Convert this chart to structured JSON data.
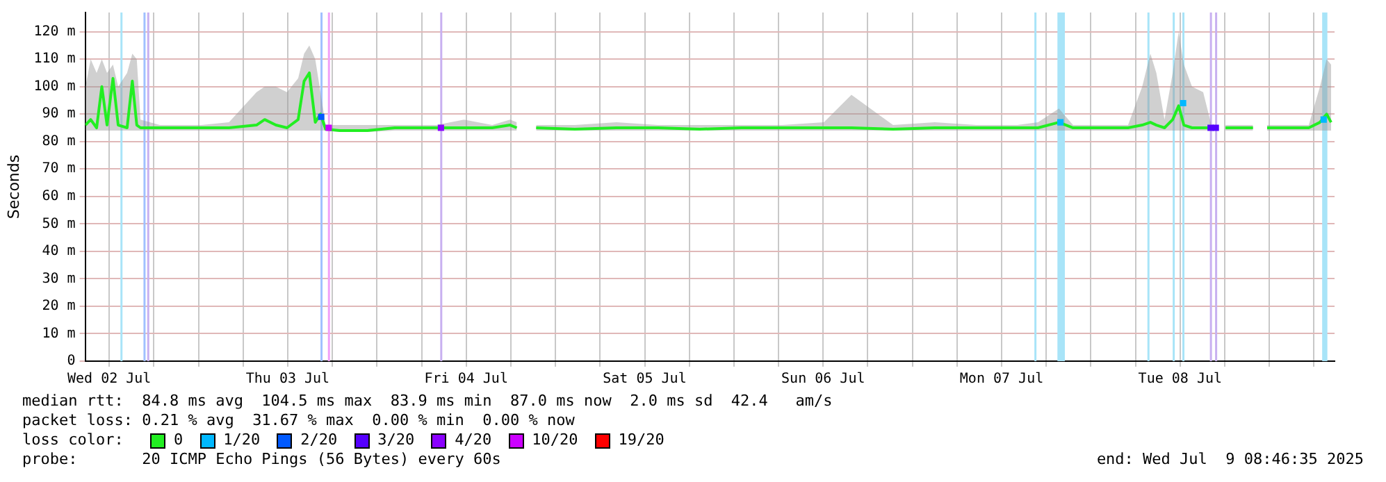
{
  "chart_data": {
    "type": "line",
    "ylabel": "Seconds",
    "legend_title": "loss color:",
    "legend": "bottom",
    "grid": true,
    "marker": "none",
    "xlim": [
      "2025-07-02T08:46",
      "2025-07-09T08:46"
    ],
    "xticks": [
      {
        "value": "2025-07-02T12:00",
        "label": "Wed 02 Jul"
      },
      {
        "value": "2025-07-02T18:00",
        "label": null
      },
      {
        "value": "2025-07-03T00:00",
        "label": null
      },
      {
        "value": "2025-07-03T06:00",
        "label": null
      },
      {
        "value": "2025-07-03T12:00",
        "label": "Thu 03 Jul"
      },
      {
        "value": "2025-07-03T18:00",
        "label": null
      },
      {
        "value": "2025-07-04T00:00",
        "label": null
      },
      {
        "value": "2025-07-04T06:00",
        "label": null
      },
      {
        "value": "2025-07-04T12:00",
        "label": "Fri 04 Jul"
      },
      {
        "value": "2025-07-04T18:00",
        "label": null
      },
      {
        "value": "2025-07-05T00:00",
        "label": null
      },
      {
        "value": "2025-07-05T06:00",
        "label": null
      },
      {
        "value": "2025-07-05T12:00",
        "label": "Sat 05 Jul"
      },
      {
        "value": "2025-07-05T18:00",
        "label": null
      },
      {
        "value": "2025-07-06T00:00",
        "label": null
      },
      {
        "value": "2025-07-06T06:00",
        "label": null
      },
      {
        "value": "2025-07-06T12:00",
        "label": "Sun 06 Jul"
      },
      {
        "value": "2025-07-06T18:00",
        "label": null
      },
      {
        "value": "2025-07-07T00:00",
        "label": null
      },
      {
        "value": "2025-07-07T06:00",
        "label": null
      },
      {
        "value": "2025-07-07T12:00",
        "label": "Mon 07 Jul"
      },
      {
        "value": "2025-07-07T18:00",
        "label": null
      },
      {
        "value": "2025-07-08T00:00",
        "label": null
      },
      {
        "value": "2025-07-08T06:00",
        "label": null
      },
      {
        "value": "2025-07-08T12:00",
        "label": "Tue 08 Jul"
      },
      {
        "value": "2025-07-08T18:00",
        "label": null
      },
      {
        "value": "2025-07-09T00:00",
        "label": null
      },
      {
        "value": "2025-07-09T06:00",
        "label": null
      }
    ],
    "ylim": [
      0,
      127
    ],
    "yticks": [
      0,
      {
        "value": 10,
        "label": "10 m"
      },
      {
        "value": 20,
        "label": "20 m"
      },
      {
        "value": 30,
        "label": "30 m"
      },
      {
        "value": 40,
        "label": "40 m"
      },
      {
        "value": 50,
        "label": "50 m"
      },
      {
        "value": 60,
        "label": "60 m"
      },
      {
        "value": 70,
        "label": "70 m"
      },
      {
        "value": 80,
        "label": "80 m"
      },
      {
        "value": 90,
        "label": "90 m"
      },
      {
        "value": 100,
        "label": "100 m"
      },
      {
        "value": 110,
        "label": "110 m"
      },
      {
        "value": 120,
        "label": "120 m"
      }
    ],
    "x": [
      "2025-07-02T08:48",
      "2025-07-02T09:30",
      "2025-07-02T10:18",
      "2025-07-02T11:00",
      "2025-07-02T11:42",
      "2025-07-02T12:30",
      "2025-07-02T13:12",
      "2025-07-02T14:24",
      "2025-07-02T15:06",
      "2025-07-02T15:42",
      "2025-07-02T16:12",
      "2025-07-02T18:48",
      "2025-07-03T00:24",
      "2025-07-03T04:06",
      "2025-07-03T07:48",
      "2025-07-03T08:54",
      "2025-07-03T10:24",
      "2025-07-03T11:54",
      "2025-07-03T13:24",
      "2025-07-03T14:12",
      "2025-07-03T14:54",
      "2025-07-03T15:42",
      "2025-07-03T16:24",
      "2025-07-03T17:06",
      "2025-07-03T19:00",
      "2025-07-03T22:42",
      "2025-07-04T02:24",
      "2025-07-04T08:00",
      "2025-07-04T11:42",
      "2025-07-04T15:30",
      "2025-07-04T17:54",
      "2025-07-04T18:48",
      "2025-07-04T19:54",
      "2025-07-04T21:00",
      "2025-07-04T21:24",
      "2025-07-05T02:36",
      "2025-07-05T08:12",
      "2025-07-05T13:48",
      "2025-07-05T19:24",
      "2025-07-06T01:00",
      "2025-07-06T06:30",
      "2025-07-06T12:06",
      "2025-07-06T15:48",
      "2025-07-06T21:24",
      "2025-07-07T03:00",
      "2025-07-07T08:36",
      "2025-07-07T14:06",
      "2025-07-07T16:54",
      "2025-07-07T19:42",
      "2025-07-07T21:36",
      "2025-07-08T01:18",
      "2025-07-08T05:00",
      "2025-07-08T06:54",
      "2025-07-08T08:00",
      "2025-07-08T08:48",
      "2025-07-08T09:54",
      "2025-07-08T11:00",
      "2025-07-08T11:48",
      "2025-07-08T12:30",
      "2025-07-08T13:36",
      "2025-07-08T15:06",
      "2025-07-08T16:12",
      "2025-07-08T17:00",
      "2025-07-08T18:06",
      "2025-07-08T21:48",
      "2025-07-08T22:54",
      "2025-07-08T23:42",
      "2025-07-09T05:18",
      "2025-07-09T06:48",
      "2025-07-09T07:42",
      "2025-07-09T08:18"
    ],
    "series": [
      {
        "name": "0",
        "color": "#22ee22",
        "values": [
          86,
          88,
          85,
          100,
          86,
          103,
          86,
          85,
          102,
          86,
          85,
          85,
          85,
          85,
          86,
          88,
          86,
          85,
          88,
          102,
          105,
          87,
          90,
          84.5,
          84,
          84,
          85,
          85,
          85,
          85,
          86,
          85,
          null,
          null,
          85,
          84.5,
          85,
          85,
          84.5,
          85,
          85,
          85,
          85,
          84.5,
          85,
          85,
          85,
          85,
          87,
          85,
          85,
          85,
          86,
          87,
          86,
          85,
          88,
          93,
          86,
          85,
          85,
          85,
          null,
          85,
          85,
          null,
          85,
          85,
          87,
          90,
          87
        ],
        "lower": [
          84,
          84,
          84,
          84,
          84,
          84,
          84,
          84,
          84,
          84,
          84,
          84,
          84,
          84,
          84,
          84,
          84,
          84,
          84,
          84,
          84,
          84,
          84,
          84,
          83.5,
          83.5,
          84,
          84,
          84,
          84,
          84,
          84,
          null,
          null,
          84,
          84,
          84,
          84,
          84,
          84,
          84,
          84,
          84,
          84,
          84,
          84,
          84,
          84,
          84,
          84,
          84,
          84,
          84,
          84,
          84,
          84,
          84,
          84,
          84,
          84,
          84,
          84,
          null,
          84,
          84,
          null,
          84,
          84,
          84,
          84,
          84
        ],
        "upper": [
          100,
          110,
          105,
          110,
          105,
          108,
          100,
          105,
          112,
          110,
          88,
          86,
          86,
          87,
          98,
          100,
          100,
          98,
          103,
          112,
          115,
          110,
          98,
          86,
          86,
          86,
          86,
          86,
          88,
          86,
          88,
          87,
          null,
          null,
          86,
          86,
          87,
          86,
          86,
          86,
          86,
          87,
          97,
          86,
          87,
          86,
          86,
          87,
          92,
          86,
          86,
          86,
          100,
          112,
          105,
          88,
          105,
          120,
          108,
          100,
          98,
          86,
          null,
          86,
          86,
          null,
          86,
          86,
          100,
          110,
          108
        ]
      },
      {
        "name": "1/20",
        "color": "#00b8ff",
        "type": "scatter",
        "marker": "square",
        "x": [
          "2025-07-07T19:54",
          "2025-07-08T12:24",
          "2025-07-09T07:18"
        ],
        "values": [
          87,
          94,
          88
        ]
      },
      {
        "name": "2/20",
        "color": "#0059ff",
        "type": "scatter",
        "marker": "square",
        "x": [
          "2025-07-03T16:30"
        ],
        "values": [
          89
        ]
      },
      {
        "name": "3/20",
        "color": "#5500ff",
        "type": "scatter",
        "marker": "square",
        "x": [
          "2025-07-08T16:06",
          "2025-07-08T16:48"
        ],
        "values": [
          85,
          85
        ]
      },
      {
        "name": "4/20",
        "color": "#8a00ff",
        "type": "scatter",
        "marker": "square",
        "x": [
          "2025-07-04T08:36"
        ],
        "values": [
          85
        ]
      },
      {
        "name": "10/20",
        "color": "#cc00ff",
        "type": "scatter",
        "marker": "square",
        "x": [
          "2025-07-03T17:30"
        ],
        "values": [
          85
        ]
      },
      {
        "name": "19/20",
        "color": "#ff0000",
        "type": "scatter",
        "marker": "square",
        "values": [
          null,
          null,
          null,
          null,
          null,
          null,
          null,
          null,
          null,
          null,
          null,
          null,
          null,
          null,
          null,
          null,
          null,
          null,
          null,
          null,
          null,
          null,
          null,
          null,
          null,
          null,
          null,
          null,
          null,
          null,
          null,
          null,
          null,
          null,
          null,
          null,
          null,
          null,
          null,
          null,
          null,
          null,
          null,
          null,
          null,
          null,
          null,
          null,
          null,
          null,
          null,
          null,
          null,
          null,
          null,
          null,
          null,
          null,
          null,
          null,
          null,
          null,
          null,
          null,
          null,
          null,
          null,
          null,
          null,
          null,
          null
        ]
      }
    ],
    "bands": [
      {
        "axis": "x",
        "from": "2025-07-02T13:30",
        "to": "2025-07-02T13:42",
        "color": "#a8e4f8"
      },
      {
        "axis": "x",
        "from": "2025-07-02T16:36",
        "to": "2025-07-02T16:48",
        "color": "#a0c0ff"
      },
      {
        "axis": "x",
        "from": "2025-07-02T17:06",
        "to": "2025-07-02T17:18",
        "color": "#c8b0f0"
      },
      {
        "axis": "x",
        "from": "2025-07-03T16:24",
        "to": "2025-07-03T16:36",
        "color": "#a0c0ff"
      },
      {
        "axis": "x",
        "from": "2025-07-03T17:24",
        "to": "2025-07-03T17:36",
        "color": "#f0a0f8"
      },
      {
        "axis": "x",
        "from": "2025-07-04T08:30",
        "to": "2025-07-04T08:42",
        "color": "#c8b0f0"
      },
      {
        "axis": "x",
        "from": "2025-07-07T16:24",
        "to": "2025-07-07T16:36",
        "color": "#a8e4f8"
      },
      {
        "axis": "x",
        "from": "2025-07-07T19:30",
        "to": "2025-07-07T20:30",
        "color": "#a8e4f8"
      },
      {
        "axis": "x",
        "from": "2025-07-08T07:36",
        "to": "2025-07-08T07:48",
        "color": "#a8e4f8"
      },
      {
        "axis": "x",
        "from": "2025-07-08T11:00",
        "to": "2025-07-08T11:12",
        "color": "#a8e4f8"
      },
      {
        "axis": "x",
        "from": "2025-07-08T12:18",
        "to": "2025-07-08T12:30",
        "color": "#a8e4f8"
      },
      {
        "axis": "x",
        "from": "2025-07-08T16:00",
        "to": "2025-07-08T16:12",
        "color": "#c8b0f0"
      },
      {
        "axis": "x",
        "from": "2025-07-08T16:42",
        "to": "2025-07-08T16:54",
        "color": "#c8b0f0"
      },
      {
        "axis": "x",
        "from": "2025-07-09T07:06",
        "to": "2025-07-09T07:48",
        "color": "#a8e4f8"
      }
    ],
    "annotations": [
      "median rtt:  84.8 ms avg  104.5 ms max  83.9 ms min  87.0 ms now  2.0 ms sd  42.4   am/s",
      "packet loss: 0.21 % avg  31.67 % max  0.00 % min  0.00 % now",
      "probe:       20 ICMP Echo Pings (56 Bytes) every 60s",
      "end: Wed Jul  9 08:46:35 2025"
    ]
  }
}
